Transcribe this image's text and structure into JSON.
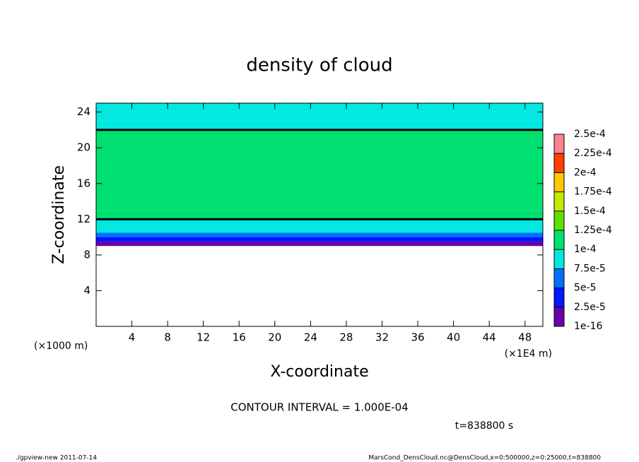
{
  "chart_data": {
    "type": "contour",
    "title": "density of cloud",
    "x_label": "X-coordinate",
    "y_label": "Z-coordinate",
    "x_unit": "(×1000 m)",
    "x_unit_right": "(×1E4 m)",
    "contour_note": "CONTOUR INTERVAL = 1.000E-04",
    "contour_interval": 0.0001,
    "time_label": "t=838800 s",
    "footer_left": "./gpview-new  2011-07-14",
    "footer_right": "MarsCond_DensCloud.nc@DensCloud,x=0:500000,z=0:25000,t=838800",
    "xlim": [
      0,
      50
    ],
    "ylim": [
      0,
      25
    ],
    "xticks": [
      4,
      8,
      12,
      16,
      20,
      24,
      28,
      32,
      36,
      40,
      44,
      48
    ],
    "yticks": [
      4,
      8,
      12,
      16,
      20,
      24
    ],
    "y_bins": [
      9,
      9.5,
      10,
      10.5,
      11,
      12,
      13,
      21,
      22,
      23,
      24,
      25
    ],
    "values": [
      1e-05,
      4e-05,
      6e-05,
      8e-05,
      9.5e-05,
      0.000102,
      0.00011,
      0.000102,
      9e-05,
      8.5e-05,
      8e-05
    ],
    "levels": [
      {
        "value": 1e-16,
        "label": "1e-16"
      },
      {
        "value": 2.5e-05,
        "label": "2.5e-5"
      },
      {
        "value": 5e-05,
        "label": "5e-5"
      },
      {
        "value": 7.5e-05,
        "label": "7.5e-5"
      },
      {
        "value": 0.0001,
        "label": "1e-4"
      },
      {
        "value": 0.000125,
        "label": "1.25e-4"
      },
      {
        "value": 0.00015,
        "label": "1.5e-4"
      },
      {
        "value": 0.000175,
        "label": "1.75e-4"
      },
      {
        "value": 0.0002,
        "label": "2e-4"
      },
      {
        "value": 0.000225,
        "label": "2.25e-4"
      },
      {
        "value": 0.00025,
        "label": "2.5e-4"
      }
    ],
    "colors": [
      "#6a00a8",
      "#0018ff",
      "#0070ff",
      "#00e8e0",
      "#00e070",
      "#60e000",
      "#c8e800",
      "#ffc800",
      "#ff4000",
      "#ff8090"
    ]
  }
}
